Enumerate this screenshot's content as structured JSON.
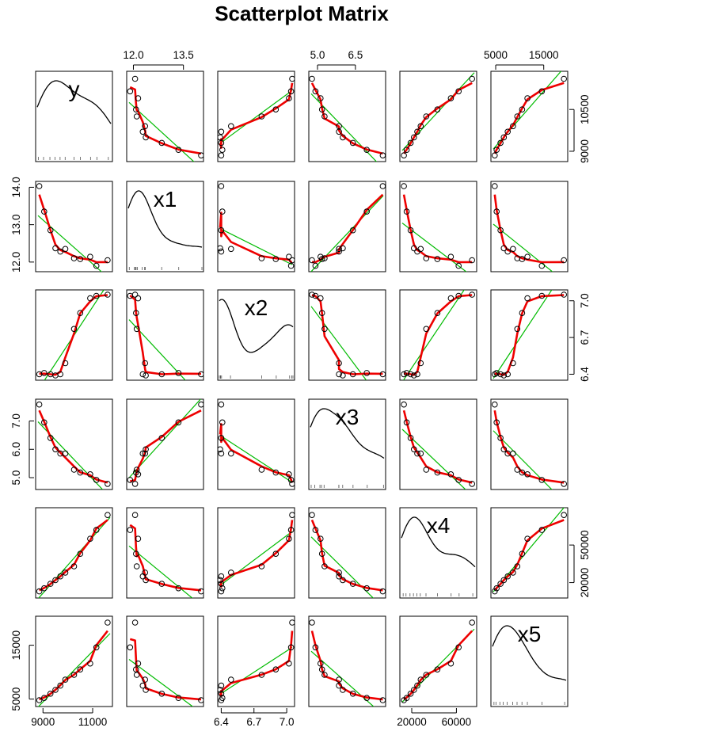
{
  "chart_data": {
    "type": "scatter-matrix",
    "title": "Scatterplot Matrix",
    "variables": [
      "y",
      "x1",
      "x2",
      "x3",
      "x4",
      "x5"
    ],
    "ranges": {
      "y": [
        8800,
        11700
      ],
      "x1": [
        11.87,
        14.03
      ],
      "x2": [
        6.39,
        7.05
      ],
      "x3": [
        4.75,
        7.6
      ],
      "x4": [
        11500,
        76000
      ],
      "x5": [
        4500,
        19500
      ]
    },
    "axis_ticks": {
      "top": {
        "x1": [
          12.0,
          13.5
        ],
        "x3": [
          5.0,
          6.5
        ],
        "x5": [
          5000,
          15000
        ]
      },
      "bottom": {
        "y": [
          9000,
          11000
        ],
        "x2": [
          6.4,
          6.7,
          7.0
        ],
        "x4": [
          20000,
          60000
        ]
      },
      "left": {
        "x1": [
          12.0,
          13.0,
          14.0
        ],
        "x3": [
          5.0,
          6.0,
          7.0
        ],
        "x5": [
          5000,
          15000
        ]
      },
      "right": {
        "y": [
          9000,
          10500
        ],
        "x2": [
          6.4,
          6.7,
          7.0
        ],
        "x4": [
          20000,
          50000
        ]
      }
    },
    "tick_labels": {
      "top": {
        "x1": [
          "12.0",
          "13.5"
        ],
        "x3": [
          "5.0",
          "6.5"
        ],
        "x5": [
          "5000",
          "15000"
        ]
      },
      "bottom": {
        "y": [
          "9000",
          "11000"
        ],
        "x2": [
          "6.4",
          "6.7",
          "7.0"
        ],
        "x4": [
          "20000",
          "60000"
        ]
      },
      "left": {
        "x1": [
          "12.0",
          "13.0",
          "14.0"
        ],
        "x3": [
          "5.0",
          "6.0",
          "7.0"
        ],
        "x5": [
          "5000",
          "15000"
        ]
      },
      "right": {
        "y": [
          "9000",
          "10500"
        ],
        "x2": [
          "6.4",
          "6.7",
          "7.0"
        ],
        "x4": [
          "20000",
          "50000"
        ]
      }
    },
    "observations": [
      {
        "y": 8850,
        "x1": 14.03,
        "x2": 6.4,
        "x3": 7.58,
        "x4": 13000,
        "x5": 4800
      },
      {
        "y": 9050,
        "x1": 13.35,
        "x2": 6.41,
        "x3": 6.95,
        "x4": 15500,
        "x5": 5200
      },
      {
        "y": 9300,
        "x1": 12.85,
        "x2": 6.4,
        "x3": 6.4,
        "x4": 19000,
        "x5": 6000
      },
      {
        "y": 9500,
        "x1": 12.37,
        "x2": 6.39,
        "x3": 6.0,
        "x4": 22000,
        "x5": 6700
      },
      {
        "y": 9700,
        "x1": 12.28,
        "x2": 6.4,
        "x3": 5.85,
        "x4": 25000,
        "x5": 7500
      },
      {
        "y": 9900,
        "x1": 12.35,
        "x2": 6.49,
        "x3": 5.85,
        "x4": 28000,
        "x5": 8600
      },
      {
        "y": 10250,
        "x1": 12.1,
        "x2": 6.77,
        "x3": 5.28,
        "x4": 33000,
        "x5": 9500
      },
      {
        "y": 10500,
        "x1": 12.08,
        "x2": 6.9,
        "x3": 5.18,
        "x4": 43000,
        "x5": 10500
      },
      {
        "y": 10900,
        "x1": 12.14,
        "x2": 7.02,
        "x3": 5.12,
        "x4": 55000,
        "x5": 11600
      },
      {
        "y": 11150,
        "x1": 11.9,
        "x2": 7.04,
        "x3": 4.92,
        "x4": 62000,
        "x5": 14600
      },
      {
        "y": 11600,
        "x1": 12.05,
        "x2": 7.05,
        "x3": 4.78,
        "x4": 74000,
        "x5": 19200
      }
    ],
    "series": [
      {
        "name": "observations",
        "mark": "circle"
      },
      {
        "name": "linear fit",
        "color": "#00bb00"
      },
      {
        "name": "smoother",
        "color": "#ee0000"
      }
    ],
    "colors": {
      "fit": "#00bb00",
      "smooth": "#ee0000",
      "points": "#000000"
    }
  }
}
